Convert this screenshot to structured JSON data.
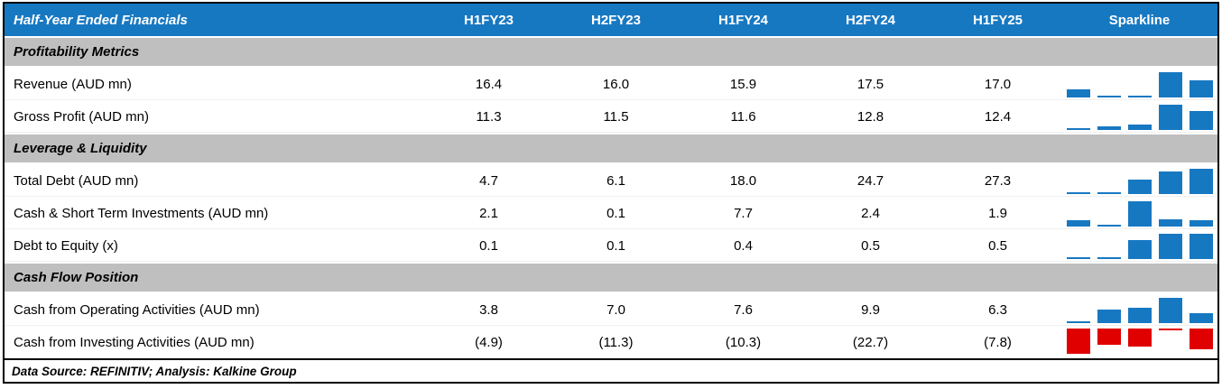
{
  "header": {
    "title": "Half-Year Ended Financials",
    "columns": [
      "H1FY23",
      "H2FY23",
      "H1FY24",
      "H2FY24",
      "H1FY25"
    ],
    "sparkline_label": "Sparkline"
  },
  "footer": {
    "text": "Data Source: REFINITIV; Analysis: Kalkine Group"
  },
  "colors": {
    "header_bg": "#1778c2",
    "header_text": "#ffffff",
    "section_bg": "#bfbfbf",
    "bar_positive": "#1778c2",
    "bar_negative": "#e00000"
  },
  "chart_data": {
    "type": "table",
    "title": "Half-Year Ended Financials",
    "columns": [
      "H1FY23",
      "H2FY23",
      "H1FY24",
      "H2FY24",
      "H1FY25"
    ],
    "sparkline_type": "bar",
    "sections": [
      {
        "title": "Profitability Metrics",
        "rows": [
          {
            "label": "Revenue (AUD mn)",
            "values": [
              16.4,
              16.0,
              15.9,
              17.5,
              17.0
            ],
            "display": [
              "16.4",
              "16.0",
              "15.9",
              "17.5",
              "17.0"
            ],
            "negative": false
          },
          {
            "label": "Gross Profit (AUD mn)",
            "values": [
              11.3,
              11.5,
              11.6,
              12.8,
              12.4
            ],
            "display": [
              "11.3",
              "11.5",
              "11.6",
              "12.8",
              "12.4"
            ],
            "negative": false
          }
        ]
      },
      {
        "title": "Leverage & Liquidity",
        "rows": [
          {
            "label": "Total Debt (AUD mn)",
            "values": [
              4.7,
              6.1,
              18.0,
              24.7,
              27.3
            ],
            "display": [
              "4.7",
              "6.1",
              "18.0",
              "24.7",
              "27.3"
            ],
            "negative": false
          },
          {
            "label": "Cash & Short Term Investments (AUD mn)",
            "values": [
              2.1,
              0.1,
              7.7,
              2.4,
              1.9
            ],
            "display": [
              "2.1",
              "0.1",
              "7.7",
              "2.4",
              "1.9"
            ],
            "negative": false
          },
          {
            "label": "Debt to Equity (x)",
            "values": [
              0.1,
              0.1,
              0.4,
              0.5,
              0.5
            ],
            "display": [
              "0.1",
              "0.1",
              "0.4",
              "0.5",
              "0.5"
            ],
            "negative": false
          }
        ]
      },
      {
        "title": "Cash Flow Position",
        "rows": [
          {
            "label": "Cash from Operating Activities (AUD mn)",
            "values": [
              3.8,
              7.0,
              7.6,
              9.9,
              6.3
            ],
            "display": [
              "3.8",
              "7.0",
              "7.6",
              "9.9",
              "6.3"
            ],
            "negative": false
          },
          {
            "label": "Cash from Investing Activities (AUD mn)",
            "values": [
              -4.9,
              -11.3,
              -10.3,
              -22.7,
              -7.8
            ],
            "display": [
              "(4.9)",
              "(11.3)",
              "(10.3)",
              "(22.7)",
              "(7.8)"
            ],
            "negative": true
          }
        ]
      }
    ]
  }
}
